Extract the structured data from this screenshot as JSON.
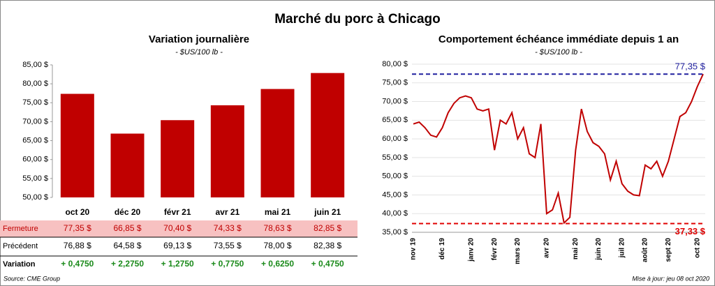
{
  "title": "Marché du porc à Chicago",
  "chart_data": [
    {
      "type": "bar",
      "title": "Variation journalière",
      "subtitle": "- $US/100 lb -",
      "categories": [
        "oct 20",
        "déc 20",
        "févr 21",
        "avr 21",
        "mai 21",
        "juin 21"
      ],
      "values": [
        77.35,
        66.85,
        70.4,
        74.33,
        78.63,
        82.85
      ],
      "color": "#c00000",
      "ylim": [
        50,
        85
      ],
      "yticks": [
        {
          "value": 50,
          "label": "50,00 $"
        },
        {
          "value": 55,
          "label": "55,00 $"
        },
        {
          "value": 60,
          "label": "60,00 $"
        },
        {
          "value": 65,
          "label": "65,00 $"
        },
        {
          "value": 70,
          "label": "70,00 $"
        },
        {
          "value": 75,
          "label": "75,00 $"
        },
        {
          "value": 80,
          "label": "80,00 $"
        },
        {
          "value": 85,
          "label": "85,00 $"
        }
      ],
      "grid": false
    },
    {
      "type": "line",
      "title": "Comportement  échéance immédiate depuis 1 an",
      "subtitle": "- $US/100 lb -",
      "categories": [
        "nov 19",
        null,
        null,
        null,
        null,
        "déc 19",
        null,
        null,
        null,
        null,
        "janv 20",
        null,
        null,
        null,
        "févr 20",
        null,
        null,
        null,
        "mars 20",
        null,
        null,
        null,
        null,
        "avr 20",
        null,
        null,
        null,
        null,
        "mai 20",
        null,
        null,
        null,
        "juin 20",
        null,
        null,
        null,
        "juil 20",
        null,
        null,
        null,
        "août 20",
        null,
        null,
        null,
        "sept 20",
        null,
        null,
        null,
        null,
        "oct 20",
        null
      ],
      "values": [
        64,
        64.5,
        63,
        61,
        60.5,
        63,
        67,
        69.5,
        71,
        71.5,
        71,
        68,
        67.5,
        68,
        57,
        65,
        64,
        67,
        60,
        63,
        56,
        55,
        64,
        40,
        41,
        45.5,
        37.5,
        39,
        57,
        68,
        62,
        59,
        58,
        56,
        49,
        54,
        48,
        46,
        45,
        44.8,
        53,
        52,
        54,
        50,
        54,
        60,
        66,
        67,
        70,
        74,
        77.35
      ],
      "color": "#c00000",
      "ylim": [
        35,
        80
      ],
      "yticks": [
        {
          "value": 35,
          "label": "35,00 $"
        },
        {
          "value": 40,
          "label": "40,00 $"
        },
        {
          "value": 45,
          "label": "45,00 $"
        },
        {
          "value": 50,
          "label": "50,00 $"
        },
        {
          "value": 55,
          "label": "55,00 $"
        },
        {
          "value": 60,
          "label": "60,00 $"
        },
        {
          "value": 65,
          "label": "65,00 $"
        },
        {
          "value": 70,
          "label": "70,00 $"
        },
        {
          "value": 75,
          "label": "75,00 $"
        },
        {
          "value": 80,
          "label": "80,00 $"
        }
      ],
      "grid": true,
      "annotations": [
        {
          "value": 77.35,
          "label": "77,35 $",
          "color": "#1f1f9f"
        },
        {
          "value": 37.33,
          "label": "37,33 $",
          "color": "#e00000"
        }
      ]
    }
  ],
  "table": {
    "rows": [
      [
        "Fermeture",
        "77,35  $",
        "66,85  $",
        "70,40  $",
        "74,33  $",
        "78,63  $",
        "82,85  $"
      ],
      [
        "Précédent",
        "76,88  $",
        "64,58  $",
        "69,13  $",
        "73,55  $",
        "78,00  $",
        "82,38  $"
      ],
      [
        "Variation",
        "+ 0,4750",
        "+ 2,2750",
        "+ 1,2750",
        "+ 0,7750",
        "+ 0,6250",
        "+ 0,4750"
      ]
    ]
  },
  "source": "Source: CME Group",
  "updated": "Mise à jour: jeu 08 oct 2020"
}
